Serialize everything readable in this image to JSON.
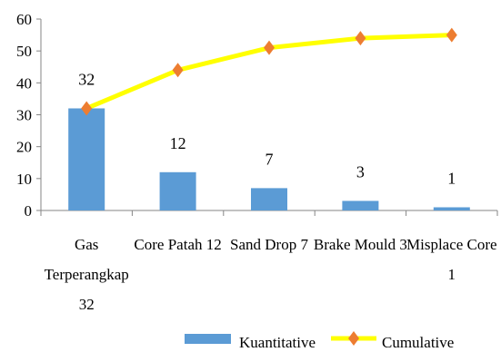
{
  "chart_data": {
    "type": "bar",
    "categories": [
      "Gas Terperangkap 32",
      "Core Patah 12",
      "Sand Drop 7",
      "Brake Mould 3",
      "Misplace Core 1"
    ],
    "category_lines": [
      [
        "Gas",
        "Terperangkap",
        "32"
      ],
      [
        "Core Patah 12"
      ],
      [
        "Sand Drop 7"
      ],
      [
        "Brake Mould 3"
      ],
      [
        "Misplace Core",
        "1"
      ]
    ],
    "series": [
      {
        "name": "Kuantitative",
        "type": "bar",
        "color": "#5B9BD5",
        "values": [
          32,
          12,
          7,
          3,
          1
        ]
      },
      {
        "name": "Cumulative",
        "type": "line",
        "color": "#FFFF00",
        "marker": "diamond",
        "marker_color": "#ED7D31",
        "values": [
          32,
          44,
          51,
          54,
          55
        ]
      }
    ],
    "data_labels": [
      "32",
      "12",
      "7",
      "3",
      "1"
    ],
    "yticks": [
      "0",
      "10",
      "20",
      "30",
      "40",
      "50",
      "60"
    ],
    "ylim": [
      0,
      60
    ],
    "title": "",
    "xlabel": "",
    "ylabel": "",
    "grid": false,
    "legend_position": "bottom"
  }
}
